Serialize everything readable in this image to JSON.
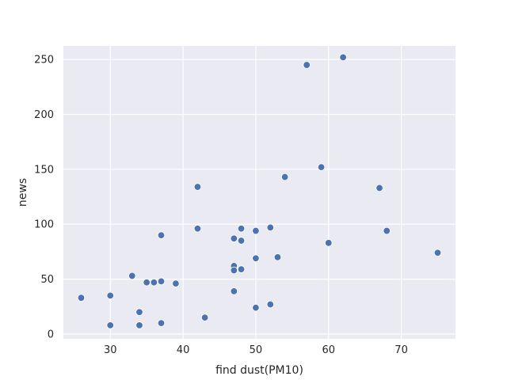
{
  "chart_data": {
    "type": "scatter",
    "title": "",
    "xlabel": "find dust(PM10)",
    "ylabel": "news",
    "xlim": [
      23.55,
      77.45
    ],
    "ylim": [
      -4.35,
      262.35
    ],
    "xticks": [
      30,
      40,
      50,
      60,
      70
    ],
    "yticks": [
      0,
      50,
      100,
      150,
      200,
      250
    ],
    "grid": true,
    "legend": "none",
    "colors": {
      "background": "#EAEAF2",
      "grid": "#FFFFFF",
      "point": "#4C72B0",
      "point_edge": "#FFFFFF"
    },
    "points": [
      {
        "x": 26,
        "y": 33
      },
      {
        "x": 30,
        "y": 35
      },
      {
        "x": 30,
        "y": 8
      },
      {
        "x": 33,
        "y": 53
      },
      {
        "x": 34,
        "y": 20
      },
      {
        "x": 34,
        "y": 8
      },
      {
        "x": 35,
        "y": 47
      },
      {
        "x": 36,
        "y": 47
      },
      {
        "x": 37,
        "y": 48
      },
      {
        "x": 37,
        "y": 90
      },
      {
        "x": 37,
        "y": 10
      },
      {
        "x": 39,
        "y": 46
      },
      {
        "x": 42,
        "y": 134
      },
      {
        "x": 42,
        "y": 96
      },
      {
        "x": 43,
        "y": 15
      },
      {
        "x": 47,
        "y": 87
      },
      {
        "x": 47,
        "y": 62
      },
      {
        "x": 47,
        "y": 58
      },
      {
        "x": 47,
        "y": 39
      },
      {
        "x": 48,
        "y": 96
      },
      {
        "x": 48,
        "y": 85
      },
      {
        "x": 48,
        "y": 59
      },
      {
        "x": 50,
        "y": 94
      },
      {
        "x": 50,
        "y": 69
      },
      {
        "x": 50,
        "y": 24
      },
      {
        "x": 52,
        "y": 97
      },
      {
        "x": 52,
        "y": 27
      },
      {
        "x": 53,
        "y": 70
      },
      {
        "x": 54,
        "y": 143
      },
      {
        "x": 57,
        "y": 245
      },
      {
        "x": 59,
        "y": 152
      },
      {
        "x": 60,
        "y": 83
      },
      {
        "x": 62,
        "y": 252
      },
      {
        "x": 67,
        "y": 133
      },
      {
        "x": 68,
        "y": 94
      },
      {
        "x": 75,
        "y": 74
      }
    ]
  }
}
